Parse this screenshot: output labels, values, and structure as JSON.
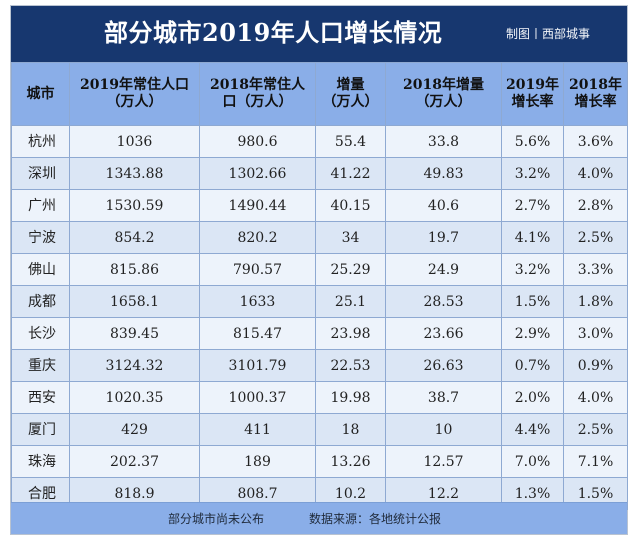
{
  "title": "部分城市2019年人口增长情况",
  "credit": "制图丨西部城事",
  "table": {
    "headers": [
      "城市",
      "2019年常住人口\n（万人）",
      "2018年常住人\n口（万人）",
      "增量\n（万人）",
      "2018年增量\n（万人）",
      "2019年\n增长率",
      "2018年\n增长率"
    ],
    "rows": [
      [
        "杭州",
        "1036",
        "980.6",
        "55.4",
        "33.8",
        "5.6%",
        "3.6%"
      ],
      [
        "深圳",
        "1343.88",
        "1302.66",
        "41.22",
        "49.83",
        "3.2%",
        "4.0%"
      ],
      [
        "广州",
        "1530.59",
        "1490.44",
        "40.15",
        "40.6",
        "2.7%",
        "2.8%"
      ],
      [
        "宁波",
        "854.2",
        "820.2",
        "34",
        "19.7",
        "4.1%",
        "2.5%"
      ],
      [
        "佛山",
        "815.86",
        "790.57",
        "25.29",
        "24.9",
        "3.2%",
        "3.3%"
      ],
      [
        "成都",
        "1658.1",
        "1633",
        "25.1",
        "28.53",
        "1.5%",
        "1.8%"
      ],
      [
        "长沙",
        "839.45",
        "815.47",
        "23.98",
        "23.66",
        "2.9%",
        "3.0%"
      ],
      [
        "重庆",
        "3124.32",
        "3101.79",
        "22.53",
        "26.63",
        "0.7%",
        "0.9%"
      ],
      [
        "西安",
        "1020.35",
        "1000.37",
        "19.98",
        "38.7",
        "2.0%",
        "4.0%"
      ],
      [
        "厦门",
        "429",
        "411",
        "18",
        "10",
        "4.4%",
        "2.5%"
      ],
      [
        "珠海",
        "202.37",
        "189",
        "13.26",
        "12.57",
        "7.0%",
        "7.1%"
      ],
      [
        "合肥",
        "818.9",
        "808.7",
        "10.2",
        "12.2",
        "1.3%",
        "1.5%"
      ]
    ]
  },
  "footer": {
    "note": "部分城市尚未公布",
    "source": "数据来源：各地统计公报"
  },
  "colors": {
    "header_background": "#17376f",
    "table_header_background": "#8aaee8",
    "row_light": "#edf3fb",
    "row_alt": "#dbe6f5"
  }
}
